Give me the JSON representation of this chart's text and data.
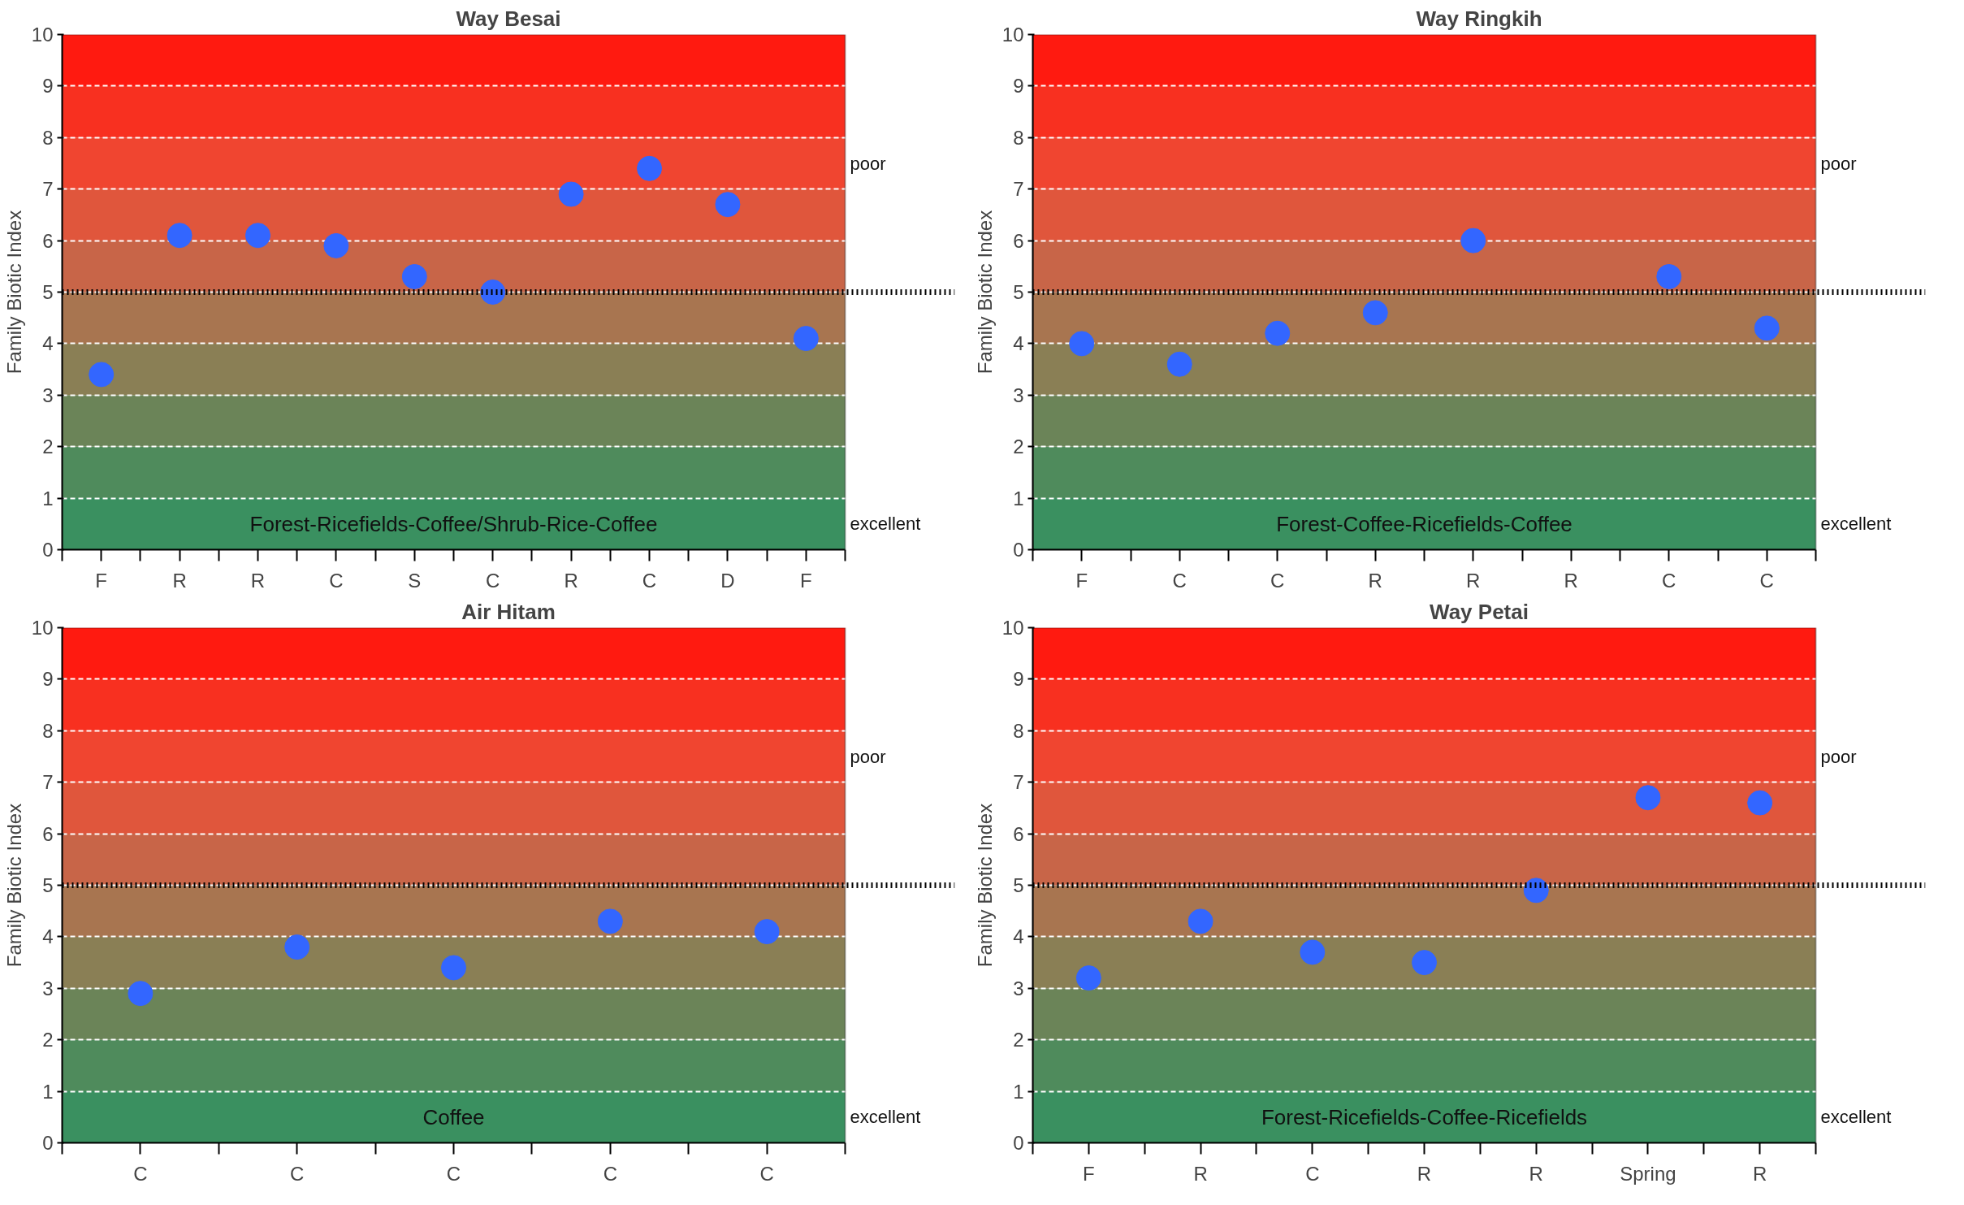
{
  "chart_data": [
    {
      "type": "scatter",
      "title": "Way Besai",
      "ylabel": "Family Biotic Index",
      "categories": [
        "F",
        "R",
        "R",
        "C",
        "S",
        "C",
        "R",
        "C",
        "D",
        "F"
      ],
      "values": [
        3.4,
        6.1,
        6.1,
        5.9,
        5.3,
        5.0,
        6.9,
        7.4,
        6.7,
        4.1
      ],
      "color": "#3366ff",
      "marker": "circle",
      "ylim": [
        0,
        10
      ],
      "yticks": [
        0,
        1,
        2,
        3,
        4,
        5,
        6,
        7,
        8,
        9,
        10
      ],
      "grid": "y",
      "ref_lines": [
        {
          "axis": "y",
          "value": 5,
          "color": "#000000",
          "line_style": "dotted"
        }
      ],
      "bands": [
        {
          "axis": "y",
          "from": 0,
          "to": 1,
          "color": "#3a9060"
        },
        {
          "axis": "y",
          "from": 1,
          "to": 2,
          "color": "#4f8b5c"
        },
        {
          "axis": "y",
          "from": 2,
          "to": 3,
          "color": "#6b8458"
        },
        {
          "axis": "y",
          "from": 3,
          "to": 4,
          "color": "#8a7f55"
        },
        {
          "axis": "y",
          "from": 4,
          "to": 5,
          "color": "#a87550"
        },
        {
          "axis": "y",
          "from": 5,
          "to": 6,
          "color": "#c86548"
        },
        {
          "axis": "y",
          "from": 6,
          "to": 7,
          "color": "#e0563c"
        },
        {
          "axis": "y",
          "from": 7,
          "to": 8,
          "color": "#f04530"
        },
        {
          "axis": "y",
          "from": 8,
          "to": 9,
          "color": "#f83020"
        },
        {
          "axis": "y",
          "from": 9,
          "to": 10,
          "color": "#ff1a10"
        }
      ],
      "annotations": [
        "Forest-Ricefields-Coffee/Shrub-Rice-Coffee",
        "poor",
        "excellent"
      ]
    },
    {
      "type": "scatter",
      "title": "Way Ringkih",
      "ylabel": "Family Biotic Index",
      "categories": [
        "F",
        "C",
        "C",
        "R",
        "R",
        "R",
        "C",
        "C"
      ],
      "values": [
        4.0,
        3.6,
        4.2,
        4.6,
        6.0,
        null,
        5.3,
        4.3
      ],
      "color": "#3366ff",
      "marker": "circle",
      "ylim": [
        0,
        10
      ],
      "yticks": [
        0,
        1,
        2,
        3,
        4,
        5,
        6,
        7,
        8,
        9,
        10
      ],
      "grid": "y",
      "ref_lines": [
        {
          "axis": "y",
          "value": 5,
          "color": "#000000",
          "line_style": "dotted"
        }
      ],
      "bands": [
        {
          "axis": "y",
          "from": 0,
          "to": 1,
          "color": "#3a9060"
        },
        {
          "axis": "y",
          "from": 1,
          "to": 2,
          "color": "#4f8b5c"
        },
        {
          "axis": "y",
          "from": 2,
          "to": 3,
          "color": "#6b8458"
        },
        {
          "axis": "y",
          "from": 3,
          "to": 4,
          "color": "#8a7f55"
        },
        {
          "axis": "y",
          "from": 4,
          "to": 5,
          "color": "#a87550"
        },
        {
          "axis": "y",
          "from": 5,
          "to": 6,
          "color": "#c86548"
        },
        {
          "axis": "y",
          "from": 6,
          "to": 7,
          "color": "#e0563c"
        },
        {
          "axis": "y",
          "from": 7,
          "to": 8,
          "color": "#f04530"
        },
        {
          "axis": "y",
          "from": 8,
          "to": 9,
          "color": "#f83020"
        },
        {
          "axis": "y",
          "from": 9,
          "to": 10,
          "color": "#ff1a10"
        }
      ],
      "annotations": [
        "Forest-Coffee-Ricefields-Coffee",
        "poor",
        "excellent"
      ]
    },
    {
      "type": "scatter",
      "title": "Air Hitam",
      "ylabel": "Family Biotic Index",
      "categories": [
        "C",
        "C",
        "C",
        "C",
        "C"
      ],
      "values": [
        2.9,
        3.8,
        3.4,
        4.3,
        4.1
      ],
      "color": "#3366ff",
      "marker": "circle",
      "ylim": [
        0,
        10
      ],
      "yticks": [
        0,
        1,
        2,
        3,
        4,
        5,
        6,
        7,
        8,
        9,
        10
      ],
      "grid": "y",
      "ref_lines": [
        {
          "axis": "y",
          "value": 5,
          "color": "#000000",
          "line_style": "dotted"
        }
      ],
      "bands": [
        {
          "axis": "y",
          "from": 0,
          "to": 1,
          "color": "#3a9060"
        },
        {
          "axis": "y",
          "from": 1,
          "to": 2,
          "color": "#4f8b5c"
        },
        {
          "axis": "y",
          "from": 2,
          "to": 3,
          "color": "#6b8458"
        },
        {
          "axis": "y",
          "from": 3,
          "to": 4,
          "color": "#8a7f55"
        },
        {
          "axis": "y",
          "from": 4,
          "to": 5,
          "color": "#a87550"
        },
        {
          "axis": "y",
          "from": 5,
          "to": 6,
          "color": "#c86548"
        },
        {
          "axis": "y",
          "from": 6,
          "to": 7,
          "color": "#e0563c"
        },
        {
          "axis": "y",
          "from": 7,
          "to": 8,
          "color": "#f04530"
        },
        {
          "axis": "y",
          "from": 8,
          "to": 9,
          "color": "#f83020"
        },
        {
          "axis": "y",
          "from": 9,
          "to": 10,
          "color": "#ff1a10"
        }
      ],
      "annotations": [
        "Coffee",
        "poor",
        "excellent"
      ]
    },
    {
      "type": "scatter",
      "title": "Way Petai",
      "ylabel": "Family Biotic Index",
      "categories": [
        "F",
        "R",
        "C",
        "R",
        "R",
        "Spring",
        "R"
      ],
      "values": [
        3.2,
        4.3,
        3.7,
        3.5,
        4.9,
        6.7,
        6.6
      ],
      "color": "#3366ff",
      "marker": "circle",
      "ylim": [
        0,
        10
      ],
      "yticks": [
        0,
        1,
        2,
        3,
        4,
        5,
        6,
        7,
        8,
        9,
        10
      ],
      "grid": "y",
      "ref_lines": [
        {
          "axis": "y",
          "value": 5,
          "color": "#000000",
          "line_style": "dotted"
        }
      ],
      "bands": [
        {
          "axis": "y",
          "from": 0,
          "to": 1,
          "color": "#3a9060"
        },
        {
          "axis": "y",
          "from": 1,
          "to": 2,
          "color": "#4f8b5c"
        },
        {
          "axis": "y",
          "from": 2,
          "to": 3,
          "color": "#6b8458"
        },
        {
          "axis": "y",
          "from": 3,
          "to": 4,
          "color": "#8a7f55"
        },
        {
          "axis": "y",
          "from": 4,
          "to": 5,
          "color": "#a87550"
        },
        {
          "axis": "y",
          "from": 5,
          "to": 6,
          "color": "#c86548"
        },
        {
          "axis": "y",
          "from": 6,
          "to": 7,
          "color": "#e0563c"
        },
        {
          "axis": "y",
          "from": 7,
          "to": 8,
          "color": "#f04530"
        },
        {
          "axis": "y",
          "from": 8,
          "to": 9,
          "color": "#f83020"
        },
        {
          "axis": "y",
          "from": 9,
          "to": 10,
          "color": "#ff1a10"
        }
      ],
      "annotations": [
        "Forest-Ricefields-Coffee-Ricefields",
        "poor",
        "excellent"
      ]
    }
  ]
}
